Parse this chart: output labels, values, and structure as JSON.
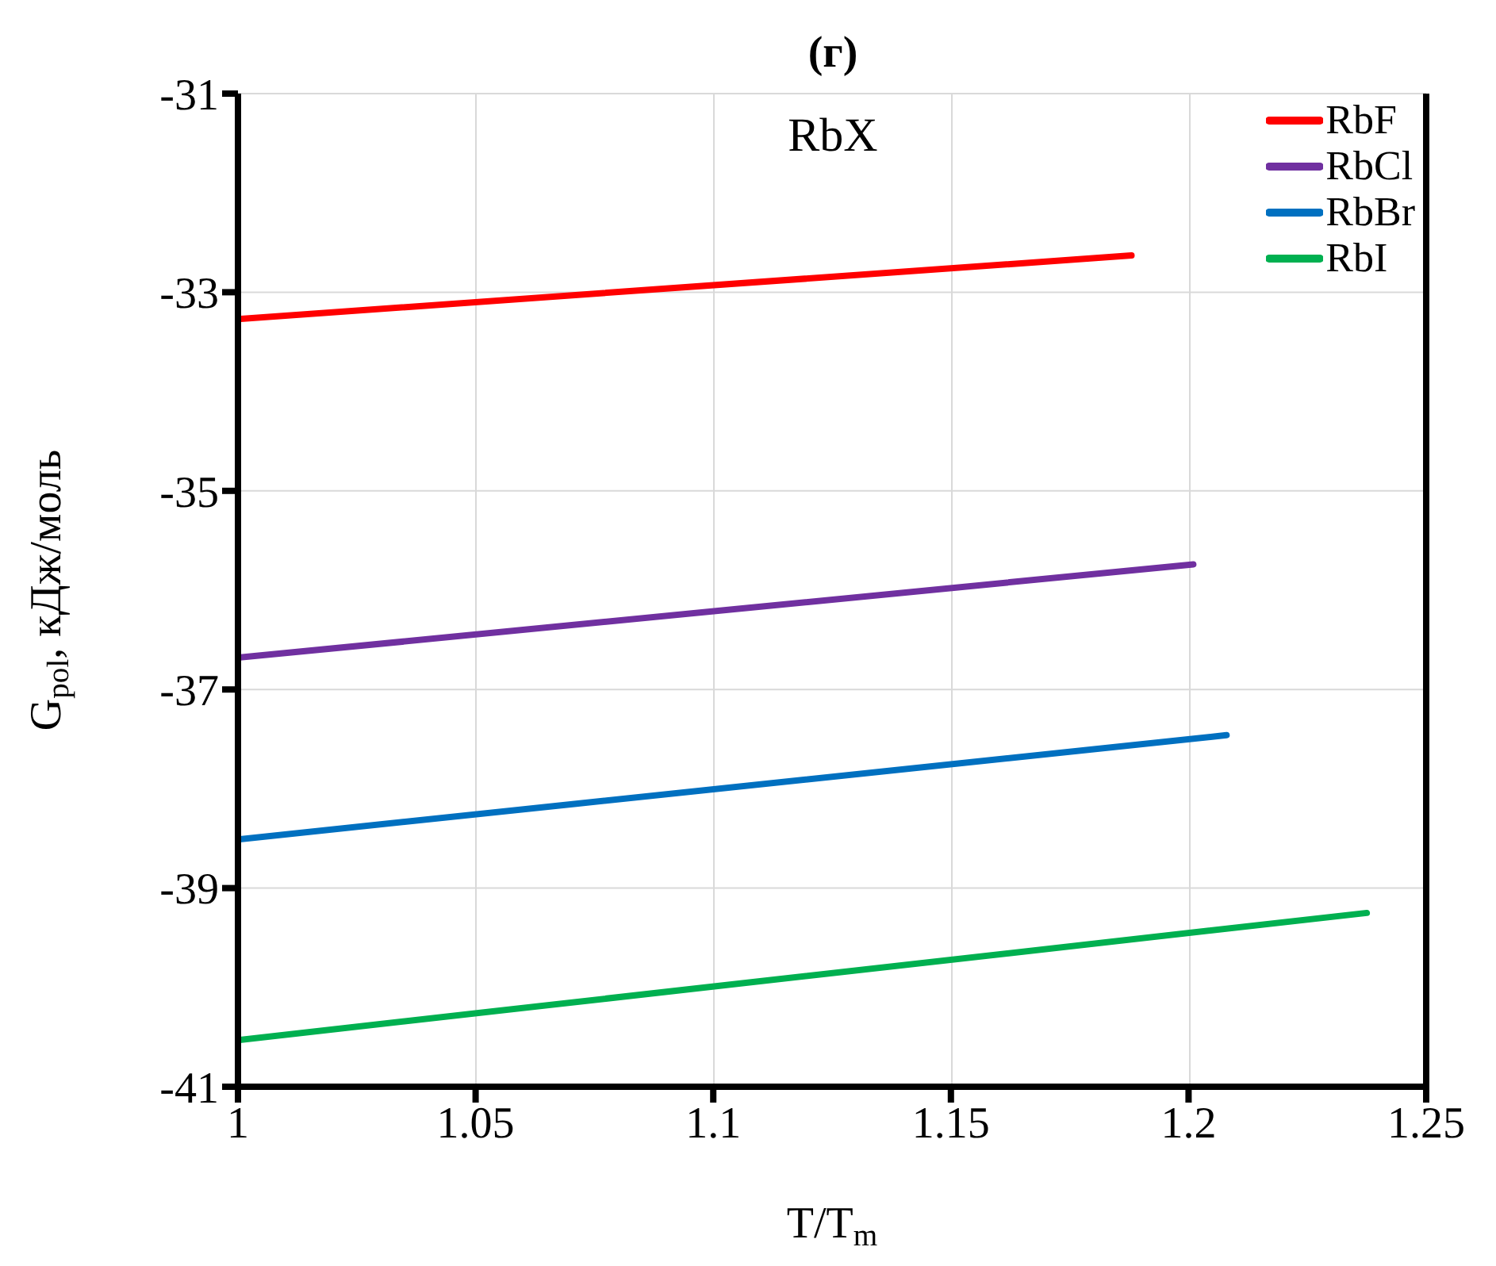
{
  "chart_data": {
    "type": "line",
    "title": "(г)",
    "annotations": [
      "RbX"
    ],
    "xlabel": "T/T$_{m}$",
    "ylabel": "G$_{pol}$, кДж/моль",
    "series": [
      {
        "name": "RbF",
        "color": "#ff0000",
        "x": [
          1,
          1.188
        ],
        "values": [
          -33.27,
          -32.63
        ]
      },
      {
        "name": "RbCl",
        "color": "#7030a0",
        "x": [
          1,
          1.201
        ],
        "values": [
          -36.68,
          -35.74
        ]
      },
      {
        "name": "RbBr",
        "color": "#0070c0",
        "x": [
          1,
          1.208
        ],
        "values": [
          -38.51,
          -37.46
        ]
      },
      {
        "name": "RbI",
        "color": "#00b050",
        "x": [
          1,
          1.2375
        ],
        "values": [
          -40.53,
          -39.25
        ]
      }
    ],
    "xlim": [
      1,
      1.25
    ],
    "xticks": [
      1,
      1.05,
      1.1,
      1.15,
      1.2,
      1.25
    ],
    "ylim": [
      -41,
      -31
    ],
    "yticks": [
      -41,
      -39,
      -37,
      -35,
      -33,
      -31
    ],
    "grid": true,
    "legend": "top right",
    "marker": "none",
    "line_style": "solid"
  }
}
